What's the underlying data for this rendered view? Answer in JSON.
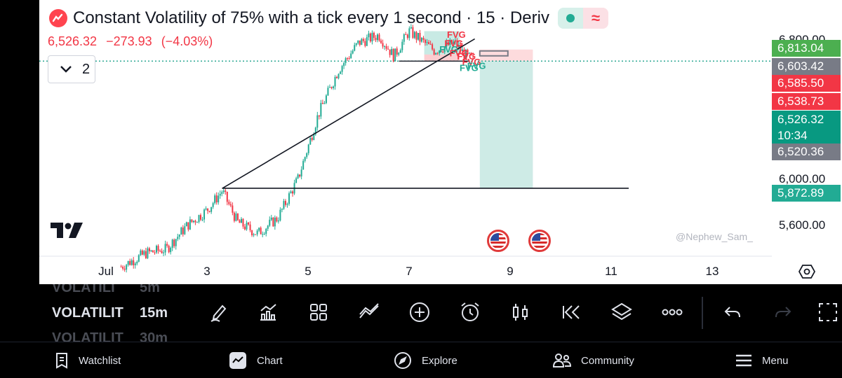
{
  "chart_header": {
    "title": "Constant Volatility of 75% with a tick every 1 second · 15 · Deriv",
    "last_price": "6,526.32",
    "change": "−273.93",
    "change_pct": "(−4.03%)",
    "indicators_count": "2",
    "watermark": "@Nephew_Sam_"
  },
  "price_scale": {
    "top_partial": "6,800.00",
    "ticks": [
      "6,000.00",
      "5,600.00"
    ],
    "labels": {
      "target": "6,813.04",
      "high": "6,603.42",
      "red_a": "6,585.50",
      "red_b": "6,538.73",
      "current": "6,526.32",
      "countdown": "10:34",
      "gray_low": "6,520.36",
      "stop": "5,872.89"
    }
  },
  "time_scale": {
    "ticks": [
      "Jul",
      "3",
      "5",
      "7",
      "9",
      "11",
      "13"
    ]
  },
  "chart_data": {
    "type": "candlestick",
    "y_axis": {
      "ticks": [
        5600,
        6000
      ],
      "range": [
        5380,
        6840
      ]
    },
    "x_axis": {
      "ticks": [
        "Jul",
        "3",
        "5",
        "7",
        "9",
        "11",
        "13"
      ]
    },
    "last_price": 6526.32,
    "approx_close_path": [
      {
        "day": 1.3,
        "price": 5470
      },
      {
        "day": 1.8,
        "price": 5540
      },
      {
        "day": 2.2,
        "price": 5560
      },
      {
        "day": 2.6,
        "price": 5680
      },
      {
        "day": 3.0,
        "price": 5760
      },
      {
        "day": 3.3,
        "price": 5860
      },
      {
        "day": 3.6,
        "price": 5700
      },
      {
        "day": 4.0,
        "price": 5640
      },
      {
        "day": 4.4,
        "price": 5720
      },
      {
        "day": 4.8,
        "price": 5920
      },
      {
        "day": 5.2,
        "price": 6250
      },
      {
        "day": 5.6,
        "price": 6480
      },
      {
        "day": 6.0,
        "price": 6620
      },
      {
        "day": 6.4,
        "price": 6660
      },
      {
        "day": 6.7,
        "price": 6550
      },
      {
        "day": 7.0,
        "price": 6680
      },
      {
        "day": 7.5,
        "price": 6580
      },
      {
        "day": 7.9,
        "price": 6620
      },
      {
        "day": 8.1,
        "price": 6560
      },
      {
        "day": 8.3,
        "price": 6526
      }
    ],
    "drawings": {
      "trendline": [
        {
          "day": 3.3,
          "price": 5872
        },
        {
          "day": 8.3,
          "price": 6640
        }
      ],
      "horizontal_line_price": 5872.89,
      "short_position": {
        "entry": 6526.32,
        "stop": 6585.5,
        "target": 5872.89
      },
      "fvg_label": "FVG"
    }
  },
  "toolbar": {
    "resolutions": [
      {
        "symbol": "VOLATILI",
        "tf": "5m",
        "dim": true
      },
      {
        "symbol": "VOLATILIT",
        "tf": "15m",
        "dim": false
      },
      {
        "symbol": "VOLATILIT",
        "tf": "30m",
        "dim": true
      }
    ],
    "tools": [
      "pencil-icon",
      "indicators-icon",
      "layout-grid-icon",
      "compare-icon",
      "add-icon",
      "alert-clock-icon",
      "candles-icon",
      "replay-icon",
      "layers-icon",
      "more-icon",
      "undo-icon",
      "redo-icon",
      "fullscreen-icon"
    ]
  },
  "bottom_nav": {
    "watchlist": "Watchlist",
    "chart": "Chart",
    "explore": "Explore",
    "community": "Community",
    "menu": "Menu"
  },
  "colors": {
    "up": "#22ab94",
    "down": "#f23645",
    "current_price": "#089981",
    "gray_label": "#787b86"
  }
}
